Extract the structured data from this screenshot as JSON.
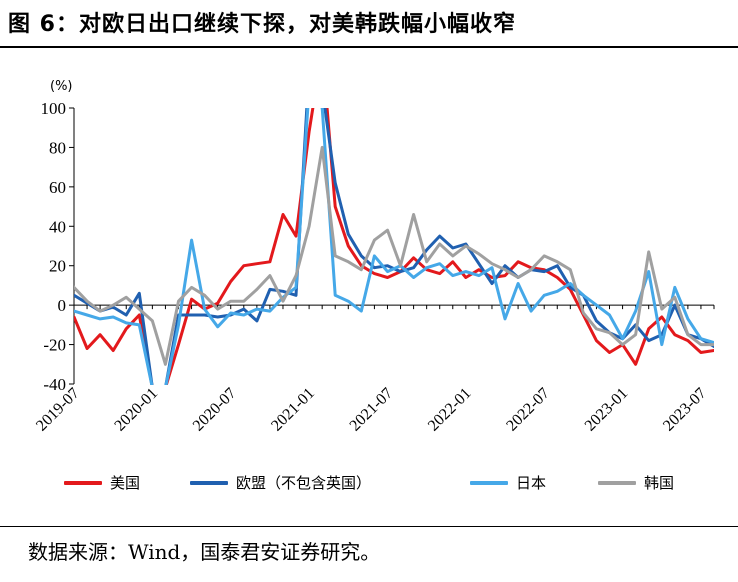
{
  "title": "图 6：对欧日出口继续下探，对美韩跌幅小幅收窄",
  "source": "数据来源：Wind，国泰君安证券研究。",
  "chart_data": {
    "type": "line",
    "ylabel": "(%)",
    "ylim": [
      -40,
      100
    ],
    "yticks": [
      -40,
      -20,
      0,
      20,
      40,
      60,
      80,
      100
    ],
    "xlim": [
      "2019-07",
      "2023-08"
    ],
    "xticks": [
      "2019-07",
      "2020-01",
      "2020-07",
      "2021-01",
      "2021-07",
      "2022-01",
      "2022-07",
      "2023-01",
      "2023-07"
    ],
    "x": [
      "2019-07",
      "2019-08",
      "2019-09",
      "2019-10",
      "2019-11",
      "2019-12",
      "2020-01",
      "2020-02",
      "2020-03",
      "2020-04",
      "2020-05",
      "2020-06",
      "2020-07",
      "2020-08",
      "2020-09",
      "2020-10",
      "2020-11",
      "2020-12",
      "2021-01",
      "2021-02",
      "2021-03",
      "2021-04",
      "2021-05",
      "2021-06",
      "2021-07",
      "2021-08",
      "2021-09",
      "2021-10",
      "2021-11",
      "2021-12",
      "2022-01",
      "2022-02",
      "2022-03",
      "2022-04",
      "2022-05",
      "2022-06",
      "2022-07",
      "2022-08",
      "2022-09",
      "2022-10",
      "2022-11",
      "2022-12",
      "2023-01",
      "2023-02",
      "2023-03",
      "2023-04",
      "2023-05",
      "2023-06",
      "2023-07",
      "2023-08"
    ],
    "grid": false,
    "legend_position": "bottom",
    "series": [
      {
        "name": "美国",
        "color": "#e3191c",
        "values": [
          -6,
          -22,
          -15,
          -23,
          -12,
          -5,
          -42,
          -42,
          -20,
          3,
          -2,
          1,
          12,
          20,
          21,
          22,
          46,
          35,
          88,
          130,
          50,
          30,
          20,
          16,
          14,
          17,
          24,
          18,
          16,
          22,
          14,
          18,
          14,
          15,
          22,
          19,
          18,
          14,
          8,
          -5,
          -18,
          -24,
          -20,
          -30,
          -12,
          -6,
          -15,
          -18,
          -24,
          -23
        ]
      },
      {
        "name": "欧盟（不包含英国）",
        "color": "#2060b0",
        "values": [
          5,
          1,
          -3,
          -1,
          -5,
          6,
          -42,
          -42,
          -5,
          -5,
          -5,
          -6,
          -5,
          -2,
          -8,
          8,
          7,
          5,
          120,
          110,
          62,
          36,
          25,
          19,
          20,
          17,
          19,
          28,
          35,
          29,
          31,
          21,
          11,
          20,
          14,
          18,
          17,
          20,
          9,
          5,
          -8,
          -14,
          -17,
          -10,
          -18,
          -15,
          0,
          -15,
          -17,
          -21
        ]
      },
      {
        "name": "日本",
        "color": "#45a8e8",
        "values": [
          -3,
          -5,
          -7,
          -6,
          -9,
          -10,
          -42,
          -42,
          -10,
          33,
          -2,
          -11,
          -4,
          -5,
          -2,
          -3,
          4,
          9,
          110,
          100,
          5,
          2,
          -3,
          25,
          17,
          20,
          14,
          19,
          21,
          15,
          17,
          15,
          19,
          -7,
          11,
          -3,
          5,
          7,
          11,
          5,
          0,
          -5,
          -17,
          -3,
          17,
          -20,
          9,
          -7,
          -17,
          -19
        ]
      },
      {
        "name": "韩国",
        "color": "#a0a0a0",
        "values": [
          9,
          2,
          -3,
          0,
          4,
          -2,
          -8,
          -30,
          2,
          9,
          5,
          -2,
          2,
          2,
          8,
          15,
          2,
          15,
          40,
          80,
          25,
          22,
          18,
          33,
          38,
          20,
          46,
          22,
          31,
          25,
          30,
          26,
          21,
          18,
          14,
          18,
          25,
          22,
          18,
          -4,
          -12,
          -14,
          -20,
          -15,
          27,
          -2,
          4,
          -15,
          -20,
          -20
        ]
      }
    ]
  }
}
